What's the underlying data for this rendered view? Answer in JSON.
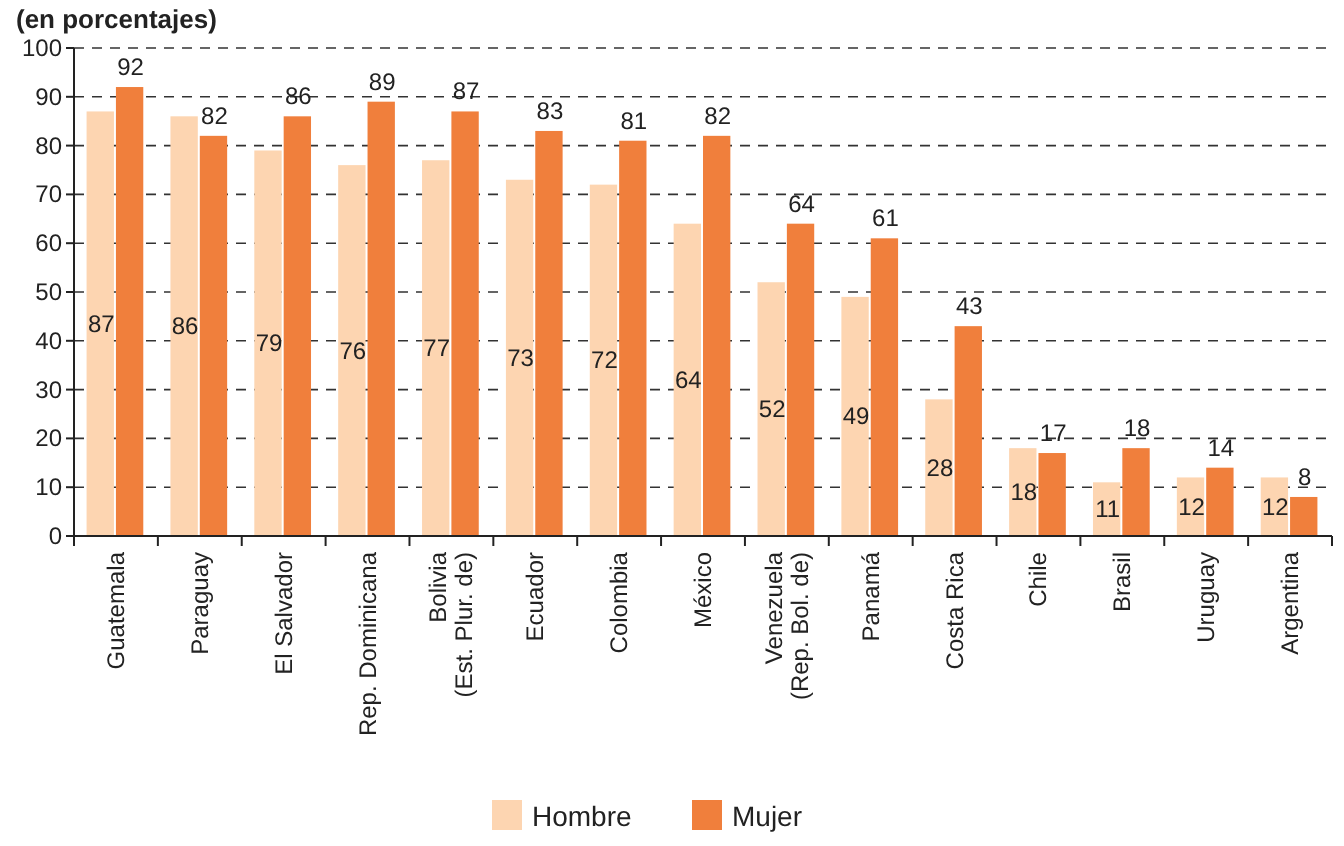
{
  "chart_data": {
    "type": "bar",
    "title": "(en porcentajes)",
    "categories": [
      "Guatemala",
      "Paraguay",
      "El Salvador",
      "Rep. Dominicana",
      "Bolivia\n(Est. Plur. de)",
      "Ecuador",
      "Colombia",
      "México",
      "Venezuela\n(Rep. Bol. de)",
      "Panamá",
      "Costa Rica",
      "Chile",
      "Brasil",
      "Uruguay",
      "Argentina"
    ],
    "series": [
      {
        "name": "Hombre",
        "color": "#fdd5b1",
        "values": [
          87,
          86,
          79,
          76,
          77,
          73,
          72,
          64,
          52,
          49,
          28,
          18,
          11,
          12,
          12
        ]
      },
      {
        "name": "Mujer",
        "color": "#f07f3c",
        "values": [
          92,
          82,
          86,
          89,
          87,
          83,
          81,
          82,
          64,
          61,
          43,
          17,
          18,
          14,
          8
        ]
      }
    ],
    "ylim": [
      0,
      100
    ],
    "yticks": [
      0,
      10,
      20,
      30,
      40,
      50,
      60,
      70,
      80,
      90,
      100
    ],
    "grid": "y",
    "data_labels": true,
    "legend": "bottom"
  }
}
